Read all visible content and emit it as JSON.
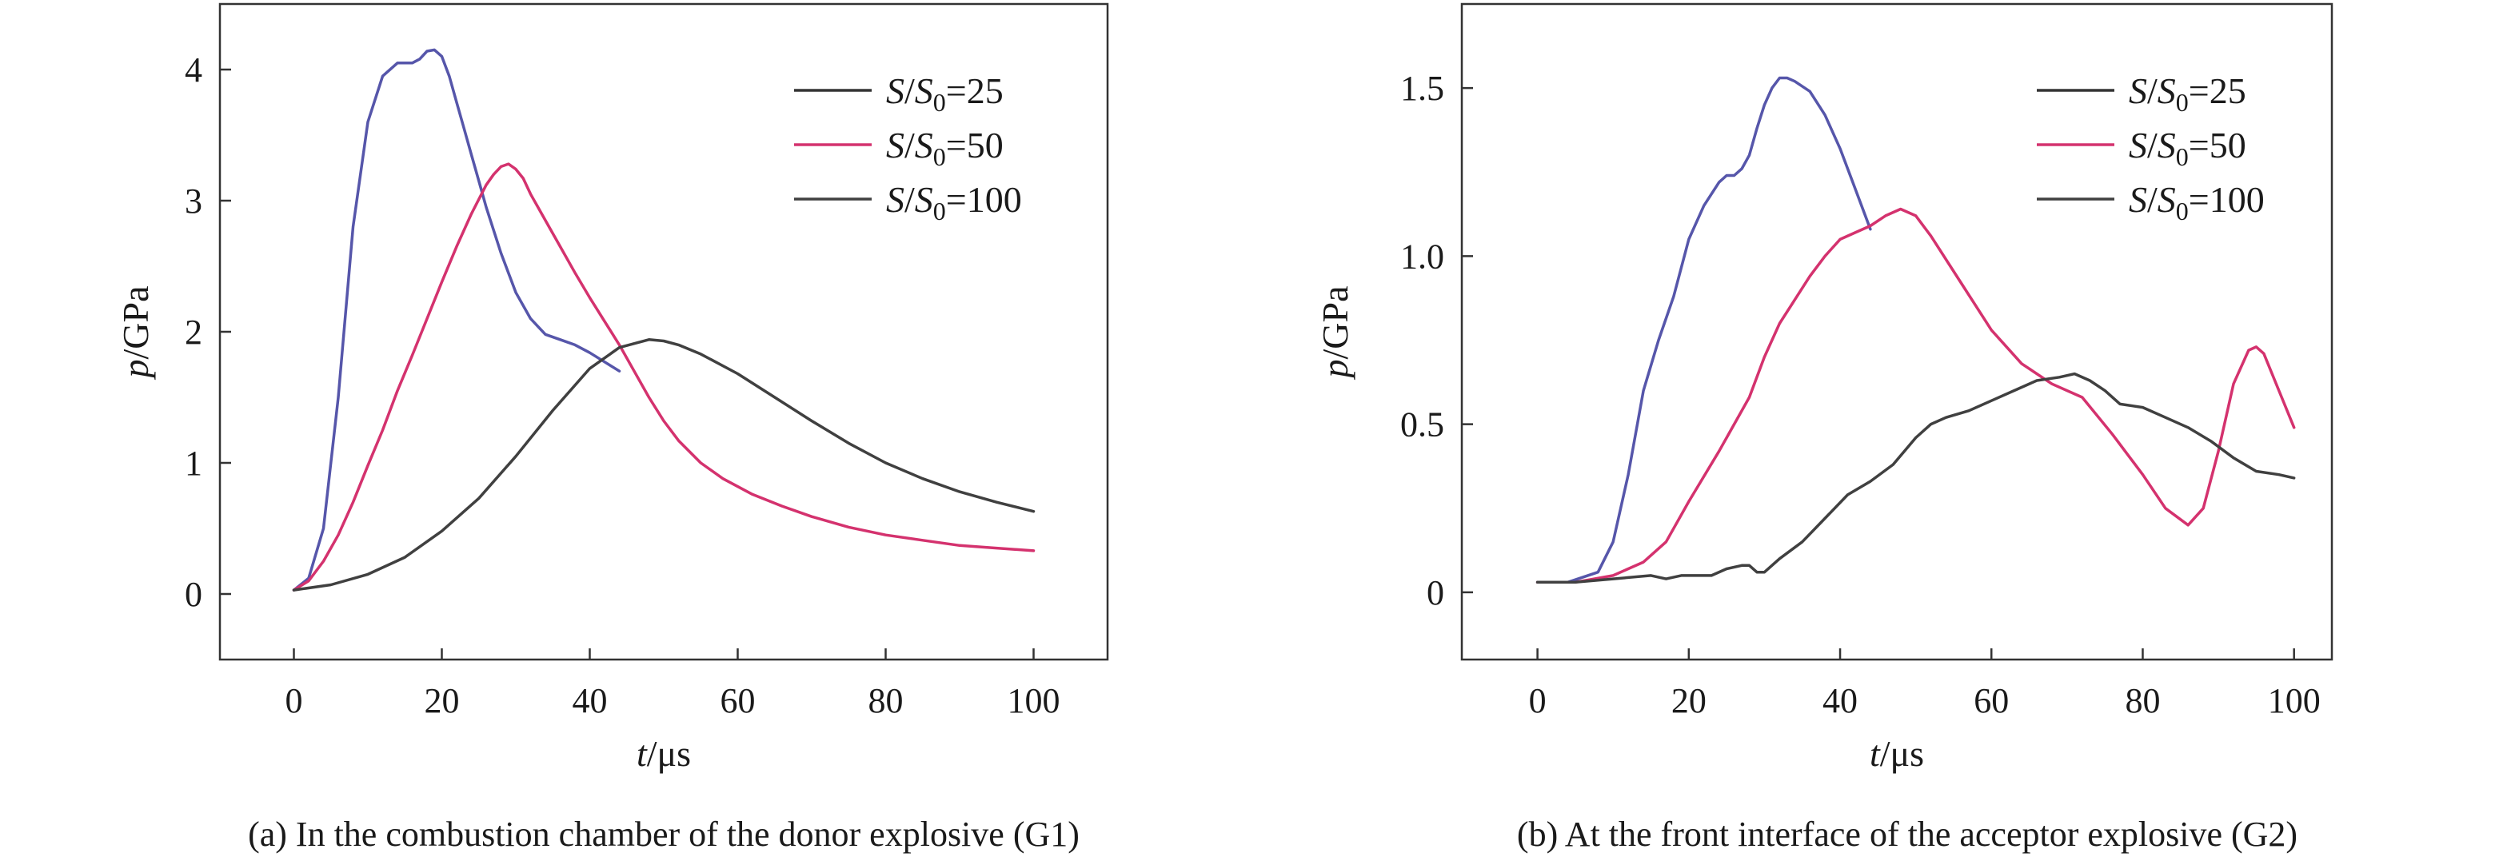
{
  "chart_data": [
    {
      "type": "line",
      "caption": "(a) In the combustion chamber of the donor explosive (G1)",
      "xlabel": {
        "italic": "t",
        "rest": "/μs"
      },
      "ylabel": {
        "italic": "p",
        "rest": "/GPa"
      },
      "xlim": [
        -10,
        110
      ],
      "ylim": [
        -0.5,
        4.5
      ],
      "xticks": [
        0,
        20,
        40,
        60,
        80,
        100
      ],
      "yticks": [
        0,
        1,
        2,
        3,
        4
      ],
      "xtick_labels": [
        "0",
        "20",
        "40",
        "60",
        "80",
        "100"
      ],
      "ytick_labels": [
        "0",
        "1",
        "2",
        "3",
        "4"
      ],
      "legend_position": "top-right",
      "series": [
        {
          "legend": {
            "S": "S",
            "sep": "/",
            "S0": "S",
            "sub": "0",
            "value": "=25"
          },
          "color": "#5656aa",
          "legend_color": "#333333",
          "x": [
            0,
            2,
            4,
            6,
            8,
            10,
            12,
            14,
            16,
            17,
            18,
            19,
            20,
            21,
            22,
            23,
            24,
            25,
            26,
            28,
            30,
            32,
            34,
            36,
            38,
            40,
            42,
            44
          ],
          "y": [
            0.03,
            0.12,
            0.5,
            1.5,
            2.8,
            3.6,
            3.95,
            4.05,
            4.05,
            4.08,
            4.14,
            4.15,
            4.1,
            3.95,
            3.75,
            3.55,
            3.35,
            3.15,
            2.95,
            2.6,
            2.3,
            2.1,
            1.98,
            1.94,
            1.9,
            1.84,
            1.77,
            1.7
          ]
        },
        {
          "legend": {
            "S": "S",
            "sep": "/",
            "S0": "S",
            "sub": "0",
            "value": "=50"
          },
          "color": "#d4326e",
          "legend_color": "#d4326e",
          "x": [
            0,
            2,
            4,
            6,
            8,
            10,
            12,
            14,
            16,
            18,
            20,
            22,
            24,
            26,
            27,
            28,
            29,
            30,
            31,
            32,
            34,
            36,
            38,
            40,
            42,
            44,
            46,
            48,
            50,
            52,
            55,
            58,
            62,
            66,
            70,
            75,
            80,
            85,
            90,
            95,
            100
          ],
          "y": [
            0.03,
            0.1,
            0.25,
            0.45,
            0.7,
            0.98,
            1.25,
            1.55,
            1.82,
            2.1,
            2.38,
            2.65,
            2.9,
            3.12,
            3.2,
            3.26,
            3.28,
            3.24,
            3.17,
            3.05,
            2.85,
            2.65,
            2.45,
            2.26,
            2.08,
            1.9,
            1.7,
            1.5,
            1.32,
            1.17,
            1.0,
            0.88,
            0.76,
            0.67,
            0.59,
            0.51,
            0.45,
            0.41,
            0.37,
            0.35,
            0.33
          ]
        },
        {
          "legend": {
            "S": "S",
            "sep": "/",
            "S0": "S",
            "sub": "0",
            "value": "=100"
          },
          "color": "#404040",
          "legend_color": "#404040",
          "x": [
            0,
            5,
            10,
            15,
            20,
            25,
            30,
            35,
            40,
            44,
            48,
            50,
            52,
            55,
            60,
            65,
            70,
            75,
            80,
            85,
            90,
            95,
            100
          ],
          "y": [
            0.03,
            0.07,
            0.15,
            0.28,
            0.48,
            0.73,
            1.05,
            1.4,
            1.72,
            1.88,
            1.94,
            1.93,
            1.9,
            1.83,
            1.68,
            1.5,
            1.32,
            1.15,
            1.0,
            0.88,
            0.78,
            0.7,
            0.63
          ]
        }
      ]
    },
    {
      "type": "line",
      "caption": "(b) At the front interface of the acceptor explosive (G2)",
      "xlabel": {
        "italic": "t",
        "rest": "/μs"
      },
      "ylabel": {
        "italic": "p",
        "rest": "/GPa"
      },
      "xlim": [
        -10,
        105
      ],
      "ylim": [
        -0.2,
        1.75
      ],
      "xticks": [
        0,
        20,
        40,
        60,
        80,
        100
      ],
      "yticks": [
        0,
        0.5,
        1.0,
        1.5
      ],
      "xtick_labels": [
        "0",
        "20",
        "40",
        "60",
        "80",
        "100"
      ],
      "ytick_labels": [
        "0",
        "0.5",
        "1.0",
        "1.5"
      ],
      "legend_position": "top-right",
      "series": [
        {
          "legend": {
            "S": "S",
            "sep": "/",
            "S0": "S",
            "sub": "0",
            "value": "=25"
          },
          "color": "#5656aa",
          "legend_color": "#333333",
          "x": [
            0,
            4,
            8,
            10,
            12,
            14,
            16,
            18,
            20,
            22,
            24,
            25,
            26,
            27,
            28,
            29,
            30,
            31,
            32,
            33,
            34,
            36,
            38,
            40,
            42,
            44
          ],
          "y": [
            0.03,
            0.03,
            0.06,
            0.15,
            0.35,
            0.6,
            0.75,
            0.88,
            1.05,
            1.15,
            1.22,
            1.24,
            1.24,
            1.26,
            1.3,
            1.38,
            1.45,
            1.5,
            1.53,
            1.53,
            1.52,
            1.49,
            1.42,
            1.32,
            1.2,
            1.08
          ]
        },
        {
          "legend": {
            "S": "S",
            "sep": "/",
            "S0": "S",
            "sub": "0",
            "value": "=50"
          },
          "color": "#d4326e",
          "legend_color": "#d4326e",
          "x": [
            0,
            5,
            10,
            14,
            17,
            20,
            24,
            28,
            30,
            32,
            34,
            36,
            38,
            40,
            42,
            44,
            46,
            48,
            50,
            52,
            56,
            60,
            64,
            68,
            72,
            76,
            80,
            83,
            86,
            88,
            90,
            92,
            94,
            95,
            96,
            98,
            100
          ],
          "y": [
            0.03,
            0.03,
            0.05,
            0.09,
            0.15,
            0.27,
            0.42,
            0.58,
            0.7,
            0.8,
            0.87,
            0.94,
            1.0,
            1.05,
            1.07,
            1.09,
            1.12,
            1.14,
            1.12,
            1.06,
            0.92,
            0.78,
            0.68,
            0.62,
            0.58,
            0.47,
            0.35,
            0.25,
            0.2,
            0.25,
            0.42,
            0.62,
            0.72,
            0.73,
            0.71,
            0.6,
            0.49
          ]
        },
        {
          "legend": {
            "S": "S",
            "sep": "/",
            "S0": "S",
            "sub": "0",
            "value": "=100"
          },
          "color": "#404040",
          "legend_color": "#404040",
          "x": [
            0,
            5,
            10,
            15,
            17,
            19,
            21,
            23,
            25,
            27,
            28,
            29,
            30,
            32,
            35,
            38,
            41,
            44,
            47,
            50,
            52,
            54,
            57,
            60,
            63,
            66,
            69,
            71,
            73,
            75,
            77,
            80,
            83,
            86,
            89,
            92,
            95,
            98,
            100
          ],
          "y": [
            0.03,
            0.03,
            0.04,
            0.05,
            0.04,
            0.05,
            0.05,
            0.05,
            0.07,
            0.08,
            0.08,
            0.06,
            0.06,
            0.1,
            0.15,
            0.22,
            0.29,
            0.33,
            0.38,
            0.46,
            0.5,
            0.52,
            0.54,
            0.57,
            0.6,
            0.63,
            0.64,
            0.65,
            0.63,
            0.6,
            0.56,
            0.55,
            0.52,
            0.49,
            0.45,
            0.4,
            0.36,
            0.35,
            0.34
          ]
        }
      ]
    }
  ]
}
